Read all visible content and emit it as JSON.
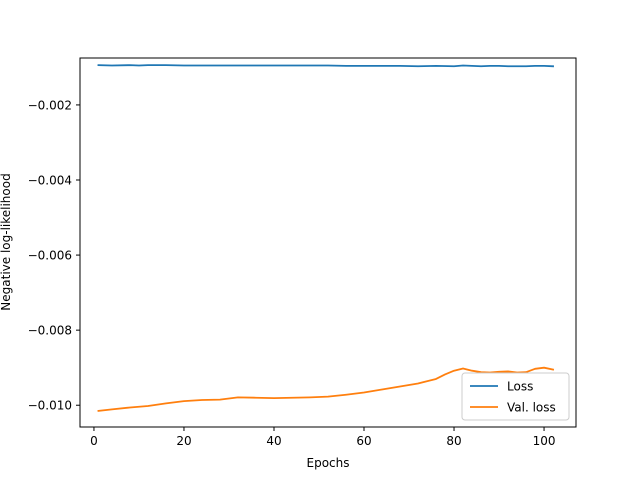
{
  "chart_data": {
    "type": "line",
    "title": "",
    "xlabel": "Epochs",
    "ylabel": "Negative log-likelihood",
    "xlim": [
      -3.1,
      107.1
    ],
    "ylim": [
      -0.01058,
      -0.00075
    ],
    "xticks": [
      0,
      20,
      40,
      60,
      80,
      100
    ],
    "xtick_labels": [
      "0",
      "20",
      "40",
      "60",
      "80",
      "100"
    ],
    "yticks": [
      -0.01,
      -0.008,
      -0.006,
      -0.004,
      -0.002
    ],
    "ytick_labels": [
      "−0.010",
      "−0.008",
      "−0.006",
      "−0.004",
      "−0.002"
    ],
    "grid": false,
    "legend_position": "lower-right",
    "series": [
      {
        "name": "Loss",
        "color": "#1f77b4",
        "x": [
          1,
          4,
          8,
          10,
          12,
          16,
          20,
          24,
          28,
          32,
          36,
          40,
          44,
          48,
          52,
          56,
          60,
          64,
          68,
          72,
          76,
          80,
          82,
          86,
          88,
          90,
          92,
          96,
          98,
          100,
          102
        ],
        "y": [
          -0.00094,
          -0.00095,
          -0.00094,
          -0.00095,
          -0.00094,
          -0.00094,
          -0.00095,
          -0.00095,
          -0.00095,
          -0.00095,
          -0.00095,
          -0.00095,
          -0.00095,
          -0.00095,
          -0.00095,
          -0.00096,
          -0.00096,
          -0.00096,
          -0.00096,
          -0.00097,
          -0.00096,
          -0.00097,
          -0.00095,
          -0.00097,
          -0.00096,
          -0.00096,
          -0.00097,
          -0.00097,
          -0.00096,
          -0.00096,
          -0.00097
        ]
      },
      {
        "name": "Val. loss",
        "color": "#ff7f0e",
        "x": [
          1,
          4,
          8,
          12,
          16,
          20,
          24,
          28,
          32,
          36,
          40,
          44,
          48,
          52,
          56,
          60,
          64,
          68,
          72,
          76,
          78,
          80,
          82,
          84,
          86,
          88,
          90,
          92,
          94,
          96,
          98,
          100,
          102
        ],
        "y": [
          -0.01015,
          -0.01011,
          -0.01006,
          -0.01002,
          -0.00995,
          -0.00989,
          -0.00986,
          -0.00985,
          -0.00979,
          -0.0098,
          -0.00981,
          -0.0098,
          -0.00979,
          -0.00977,
          -0.00972,
          -0.00966,
          -0.00958,
          -0.0095,
          -0.00942,
          -0.0093,
          -0.00918,
          -0.00908,
          -0.00902,
          -0.00908,
          -0.00912,
          -0.00913,
          -0.00911,
          -0.0091,
          -0.00913,
          -0.00912,
          -0.00903,
          -0.009,
          -0.00905
        ]
      }
    ]
  }
}
